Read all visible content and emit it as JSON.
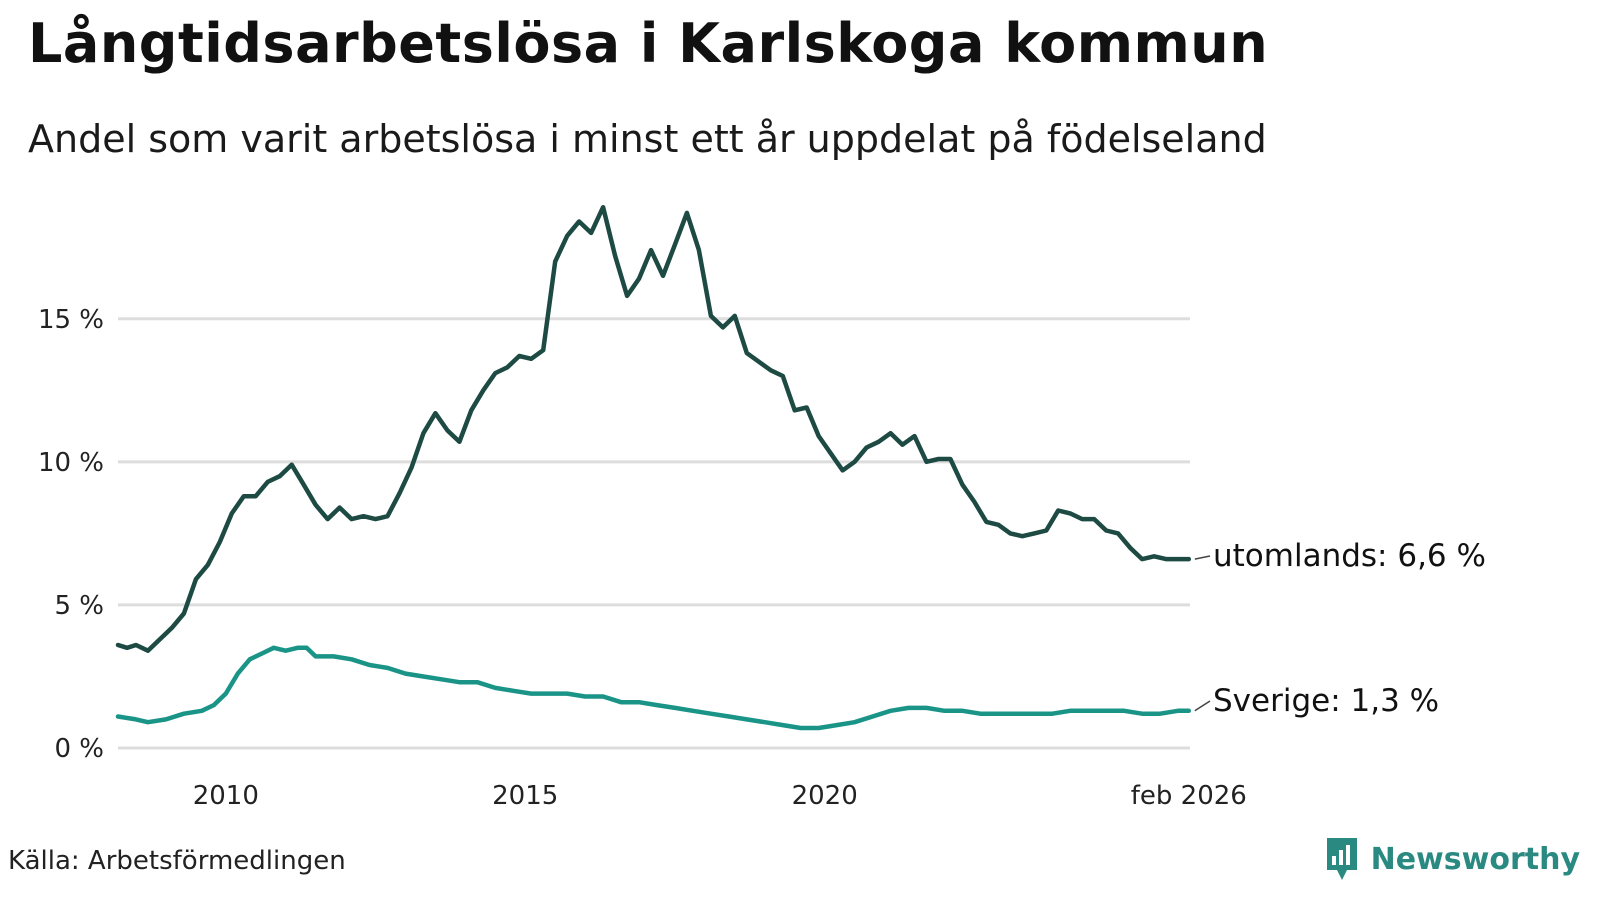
{
  "title": "Långtidsarbetslösa i Karlskoga kommun",
  "subtitle": "Andel som varit arbetslösa i minst ett år uppdelat på födelseland",
  "source": "Källa: Arbetsförmedlingen",
  "brand": {
    "name": "Newsworthy",
    "icon": "newsworthy-logo-icon",
    "color": "#2a8a82"
  },
  "colors": {
    "utomlands": "#1e4a44",
    "sverige": "#1b9488",
    "grid": "#dddddd"
  },
  "chart_data": {
    "type": "line",
    "title": "Långtidsarbetslösa i Karlskoga kommun",
    "subtitle": "Andel som varit arbetslösa i minst ett år uppdelat på födelseland",
    "xlabel": "",
    "ylabel": "",
    "xlim": [
      2008.2,
      2026.1
    ],
    "ylim": [
      0,
      19.5
    ],
    "grid": true,
    "x_ticks": [
      {
        "value": 2010,
        "label": "2010"
      },
      {
        "value": 2015,
        "label": "2015"
      },
      {
        "value": 2020,
        "label": "2020"
      },
      {
        "value": 2026.08,
        "label": "feb 2026"
      }
    ],
    "y_ticks": [
      {
        "value": 0,
        "label": "0 %"
      },
      {
        "value": 5,
        "label": "5 %"
      },
      {
        "value": 10,
        "label": "10 %"
      },
      {
        "value": 15,
        "label": "15 %"
      }
    ],
    "series": [
      {
        "name": "utomlands",
        "end_label": "utomlands: 6,6 %",
        "x": [
          2008.2,
          2008.35,
          2008.5,
          2008.7,
          2008.9,
          2009.1,
          2009.3,
          2009.5,
          2009.7,
          2009.9,
          2010.1,
          2010.3,
          2010.5,
          2010.7,
          2010.9,
          2011.1,
          2011.3,
          2011.5,
          2011.7,
          2011.9,
          2012.1,
          2012.3,
          2012.5,
          2012.7,
          2012.9,
          2013.1,
          2013.3,
          2013.5,
          2013.7,
          2013.9,
          2014.1,
          2014.3,
          2014.5,
          2014.7,
          2014.9,
          2015.1,
          2015.3,
          2015.5,
          2015.7,
          2015.9,
          2016.1,
          2016.3,
          2016.5,
          2016.7,
          2016.9,
          2017.1,
          2017.3,
          2017.5,
          2017.7,
          2017.9,
          2018.1,
          2018.3,
          2018.5,
          2018.7,
          2018.9,
          2019.1,
          2019.3,
          2019.5,
          2019.7,
          2019.9,
          2020.1,
          2020.3,
          2020.5,
          2020.7,
          2020.9,
          2021.1,
          2021.3,
          2021.5,
          2021.7,
          2021.9,
          2022.1,
          2022.3,
          2022.5,
          2022.7,
          2022.9,
          2023.1,
          2023.3,
          2023.5,
          2023.7,
          2023.9,
          2024.1,
          2024.3,
          2024.5,
          2024.7,
          2024.9,
          2025.1,
          2025.3,
          2025.5,
          2025.7,
          2025.85,
          2026.0,
          2026.08
        ],
        "values": [
          3.6,
          3.5,
          3.6,
          3.4,
          3.8,
          4.2,
          4.7,
          5.9,
          6.4,
          7.2,
          8.2,
          8.8,
          8.8,
          9.3,
          9.5,
          9.9,
          9.2,
          8.5,
          8.0,
          8.4,
          8.0,
          8.1,
          8.0,
          8.1,
          8.9,
          9.8,
          11.0,
          11.7,
          11.1,
          10.7,
          11.8,
          12.5,
          13.1,
          13.3,
          13.7,
          13.6,
          13.9,
          17.0,
          17.9,
          18.4,
          18.0,
          18.9,
          17.2,
          15.8,
          16.4,
          17.4,
          16.5,
          17.6,
          18.7,
          17.4,
          15.1,
          14.7,
          15.1,
          13.8,
          13.5,
          13.2,
          13.0,
          11.8,
          11.9,
          10.9,
          10.3,
          9.7,
          10.0,
          10.5,
          10.7,
          11.0,
          10.6,
          10.9,
          10.0,
          10.1,
          10.1,
          9.2,
          8.6,
          7.9,
          7.8,
          7.5,
          7.4,
          7.5,
          7.6,
          8.3,
          8.2,
          8.0,
          8.0,
          7.6,
          7.5,
          7.0,
          6.6,
          6.7,
          6.6,
          6.6,
          6.6,
          6.6
        ]
      },
      {
        "name": "Sverige",
        "end_label": "Sverige: 1,3 %",
        "x": [
          2008.2,
          2008.5,
          2008.7,
          2009.0,
          2009.3,
          2009.6,
          2009.8,
          2010.0,
          2010.2,
          2010.4,
          2010.6,
          2010.8,
          2011.0,
          2011.2,
          2011.35,
          2011.5,
          2011.8,
          2012.1,
          2012.4,
          2012.7,
          2013.0,
          2013.3,
          2013.6,
          2013.9,
          2014.2,
          2014.5,
          2014.8,
          2015.1,
          2015.4,
          2015.7,
          2016.0,
          2016.3,
          2016.6,
          2016.9,
          2017.2,
          2017.5,
          2017.8,
          2018.1,
          2018.4,
          2018.7,
          2019.0,
          2019.3,
          2019.6,
          2019.9,
          2020.2,
          2020.5,
          2020.8,
          2021.1,
          2021.4,
          2021.7,
          2022.0,
          2022.3,
          2022.6,
          2022.9,
          2023.2,
          2023.5,
          2023.8,
          2024.1,
          2024.4,
          2024.7,
          2025.0,
          2025.3,
          2025.6,
          2025.9,
          2026.08
        ],
        "values": [
          1.1,
          1.0,
          0.9,
          1.0,
          1.2,
          1.3,
          1.5,
          1.9,
          2.6,
          3.1,
          3.3,
          3.5,
          3.4,
          3.5,
          3.5,
          3.2,
          3.2,
          3.1,
          2.9,
          2.8,
          2.6,
          2.5,
          2.4,
          2.3,
          2.3,
          2.1,
          2.0,
          1.9,
          1.9,
          1.9,
          1.8,
          1.8,
          1.6,
          1.6,
          1.5,
          1.4,
          1.3,
          1.2,
          1.1,
          1.0,
          0.9,
          0.8,
          0.7,
          0.7,
          0.8,
          0.9,
          1.1,
          1.3,
          1.4,
          1.4,
          1.3,
          1.3,
          1.2,
          1.2,
          1.2,
          1.2,
          1.2,
          1.3,
          1.3,
          1.3,
          1.3,
          1.2,
          1.2,
          1.3,
          1.3
        ]
      }
    ]
  }
}
